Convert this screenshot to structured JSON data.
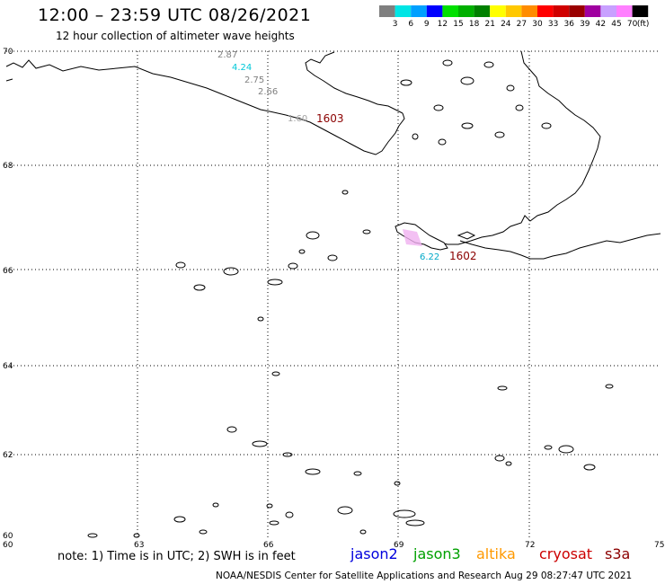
{
  "header": {
    "title": "12:00 – 23:59 UTC 08/26/2021",
    "subtitle": "12 hour collection of altimeter wave heights"
  },
  "color_scale": {
    "labels": [
      "3",
      "6",
      "9",
      "12",
      "15",
      "18",
      "21",
      "24",
      "27",
      "30",
      "33",
      "36",
      "39",
      "42",
      "45",
      "70"
    ],
    "unit": "(ft)",
    "colors": [
      "#7f7f7f",
      "#00e5e5",
      "#00a0ff",
      "#0000ff",
      "#00e000",
      "#00b000",
      "#008000",
      "#ffff00",
      "#ffc800",
      "#ff8c00",
      "#ff0000",
      "#d00000",
      "#9a0000",
      "#a000a0",
      "#c8a0ff",
      "#ff80ff",
      "#000000"
    ]
  },
  "axes": {
    "lat_labels": [
      "70",
      "68",
      "66",
      "64",
      "62",
      "60"
    ],
    "lon_labels": [
      "60",
      "63",
      "66",
      "69",
      "72",
      "75"
    ]
  },
  "observations": [
    {
      "value": "2.87",
      "color": "#808080"
    },
    {
      "value": "4.24",
      "color": "#00c8d8"
    },
    {
      "value": "2.75",
      "color": "#808080"
    },
    {
      "value": "2.66",
      "color": "#808080"
    },
    {
      "value": "1.60",
      "color": "#a0a0a0"
    },
    {
      "value": "1603",
      "color": "#8b0000"
    },
    {
      "value": "6.22",
      "color": "#00a8c8"
    },
    {
      "value": "1602",
      "color": "#8b0000"
    }
  ],
  "note": "note: 1) Time is in UTC; 2) SWH is in feet",
  "missions": [
    {
      "name": "jason2",
      "color": "#0000dd"
    },
    {
      "name": "jason3",
      "color": "#00a000"
    },
    {
      "name": "altika",
      "color": "#ff9900"
    },
    {
      "name": "cryosat",
      "color": "#cc0000"
    },
    {
      "name": "s3a",
      "color": "#8b0000"
    }
  ],
  "footer": "NOAA/NESDIS Center for Satellite Applications and Research    Aug 29 08:27:47 UTC 2021"
}
